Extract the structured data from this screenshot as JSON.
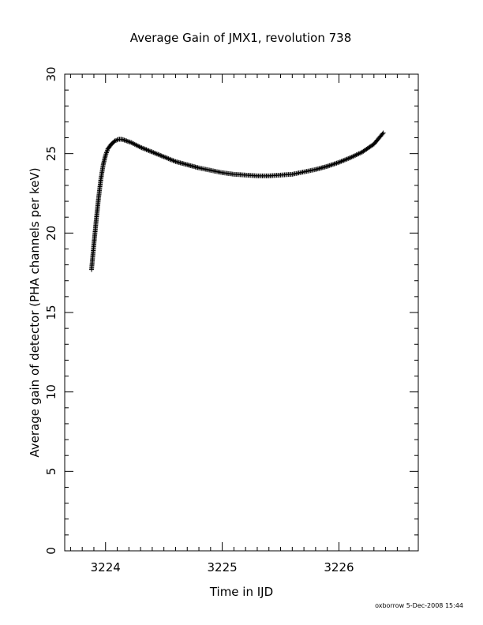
{
  "chart_data": {
    "type": "scatter",
    "title": "Average Gain of JMX1, revolution 738",
    "xlabel": "Time in IJD",
    "ylabel": "Average gain of detector (PHA channels per keV)",
    "xlim": [
      3223.65,
      3226.68
    ],
    "ylim": [
      0,
      30
    ],
    "x_ticks": [
      3224,
      3225,
      3226
    ],
    "y_ticks": [
      0,
      5,
      10,
      15,
      20,
      25,
      30
    ],
    "marker": "plus",
    "grid": false,
    "series": [
      {
        "x": [
          3223.88,
          3223.9,
          3223.92,
          3223.94,
          3223.96,
          3223.98,
          3224.0,
          3224.02,
          3224.05,
          3224.08,
          3224.11,
          3224.14,
          3224.18,
          3224.22,
          3224.3,
          3224.4,
          3224.5,
          3224.6,
          3224.7,
          3224.8,
          3224.9,
          3225.0,
          3225.1,
          3225.2,
          3225.3,
          3225.4,
          3225.5,
          3225.6,
          3225.7,
          3225.8,
          3225.9,
          3226.0,
          3226.1,
          3226.2,
          3226.3,
          3226.38
        ],
        "y": [
          17.7,
          19.3,
          20.8,
          22.2,
          23.4,
          24.3,
          24.9,
          25.3,
          25.6,
          25.8,
          25.9,
          25.9,
          25.8,
          25.7,
          25.4,
          25.1,
          24.8,
          24.5,
          24.3,
          24.1,
          23.95,
          23.8,
          23.7,
          23.65,
          23.6,
          23.6,
          23.65,
          23.7,
          23.85,
          24.0,
          24.2,
          24.45,
          24.75,
          25.1,
          25.6,
          26.3
        ]
      }
    ]
  },
  "footer": {
    "stamp": "oxborrow   5-Dec-2008 15:44"
  }
}
